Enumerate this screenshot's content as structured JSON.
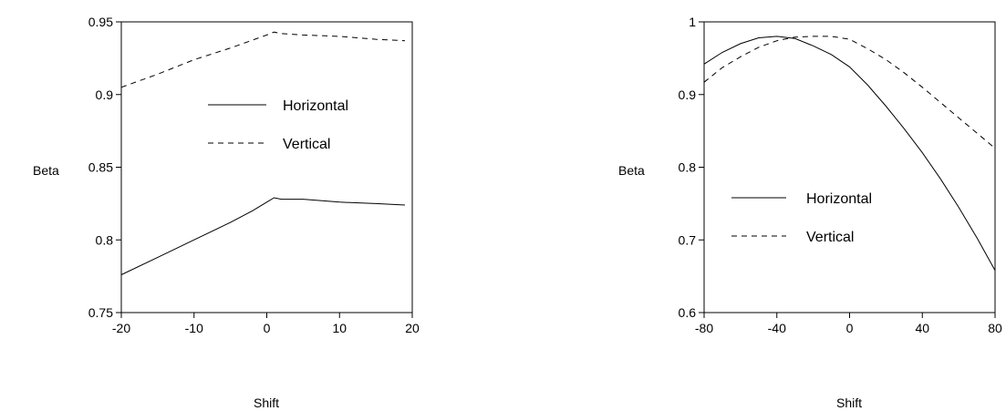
{
  "chart_data": [
    {
      "type": "line",
      "title": "",
      "xlabel": "Shift",
      "ylabel": "Beta",
      "xlim": [
        -20,
        20
      ],
      "ylim": [
        0.75,
        0.95
      ],
      "xticks": [
        -20,
        -10,
        0,
        10,
        20
      ],
      "xtick_labels": [
        "-20",
        "-10",
        "0",
        "10",
        "20"
      ],
      "yticks": [
        0.75,
        0.8,
        0.85,
        0.9,
        0.95
      ],
      "ytick_labels": [
        "0.75",
        "0.8",
        "0.85",
        "0.9",
        "0.95"
      ],
      "grid": false,
      "legend_position": "center",
      "series": [
        {
          "name": "Horizontal",
          "style": "solid",
          "x": [
            -20,
            -15,
            -10,
            -5,
            -2,
            0,
            1,
            2,
            5,
            10,
            15,
            19
          ],
          "y": [
            0.776,
            0.788,
            0.8,
            0.812,
            0.82,
            0.826,
            0.829,
            0.828,
            0.828,
            0.826,
            0.825,
            0.824
          ]
        },
        {
          "name": "Vertical",
          "style": "dashed",
          "x": [
            -20,
            -15,
            -10,
            -5,
            0,
            1,
            2,
            5,
            10,
            15,
            19
          ],
          "y": [
            0.905,
            0.914,
            0.924,
            0.932,
            0.941,
            0.943,
            0.942,
            0.941,
            0.94,
            0.938,
            0.937
          ]
        }
      ]
    },
    {
      "type": "line",
      "title": "",
      "xlabel": "Shift",
      "ylabel": "Beta",
      "xlim": [
        -80,
        80
      ],
      "ylim": [
        0.6,
        1.0
      ],
      "xticks": [
        -80,
        -40,
        0,
        40,
        80
      ],
      "xtick_labels": [
        "-80",
        "-40",
        "0",
        "40",
        "80"
      ],
      "yticks": [
        0.6,
        0.7,
        0.8,
        0.9,
        1.0
      ],
      "ytick_labels": [
        "0.6",
        "0.7",
        "0.8",
        "0.9",
        "1"
      ],
      "grid": false,
      "legend_position": "center-left",
      "series": [
        {
          "name": "Horizontal",
          "style": "solid",
          "x": [
            -80,
            -70,
            -60,
            -50,
            -40,
            -30,
            -20,
            -10,
            0,
            10,
            20,
            30,
            40,
            50,
            60,
            70,
            80
          ],
          "y": [
            0.942,
            0.958,
            0.97,
            0.978,
            0.98,
            0.977,
            0.967,
            0.955,
            0.938,
            0.913,
            0.884,
            0.853,
            0.82,
            0.784,
            0.745,
            0.703,
            0.658
          ]
        },
        {
          "name": "Vertical",
          "style": "dashed",
          "x": [
            -80,
            -70,
            -60,
            -50,
            -40,
            -30,
            -20,
            -10,
            0,
            10,
            20,
            30,
            40,
            50,
            60,
            70,
            80
          ],
          "y": [
            0.917,
            0.937,
            0.952,
            0.965,
            0.974,
            0.979,
            0.98,
            0.98,
            0.976,
            0.963,
            0.948,
            0.93,
            0.91,
            0.889,
            0.868,
            0.847,
            0.826
          ]
        }
      ]
    }
  ]
}
